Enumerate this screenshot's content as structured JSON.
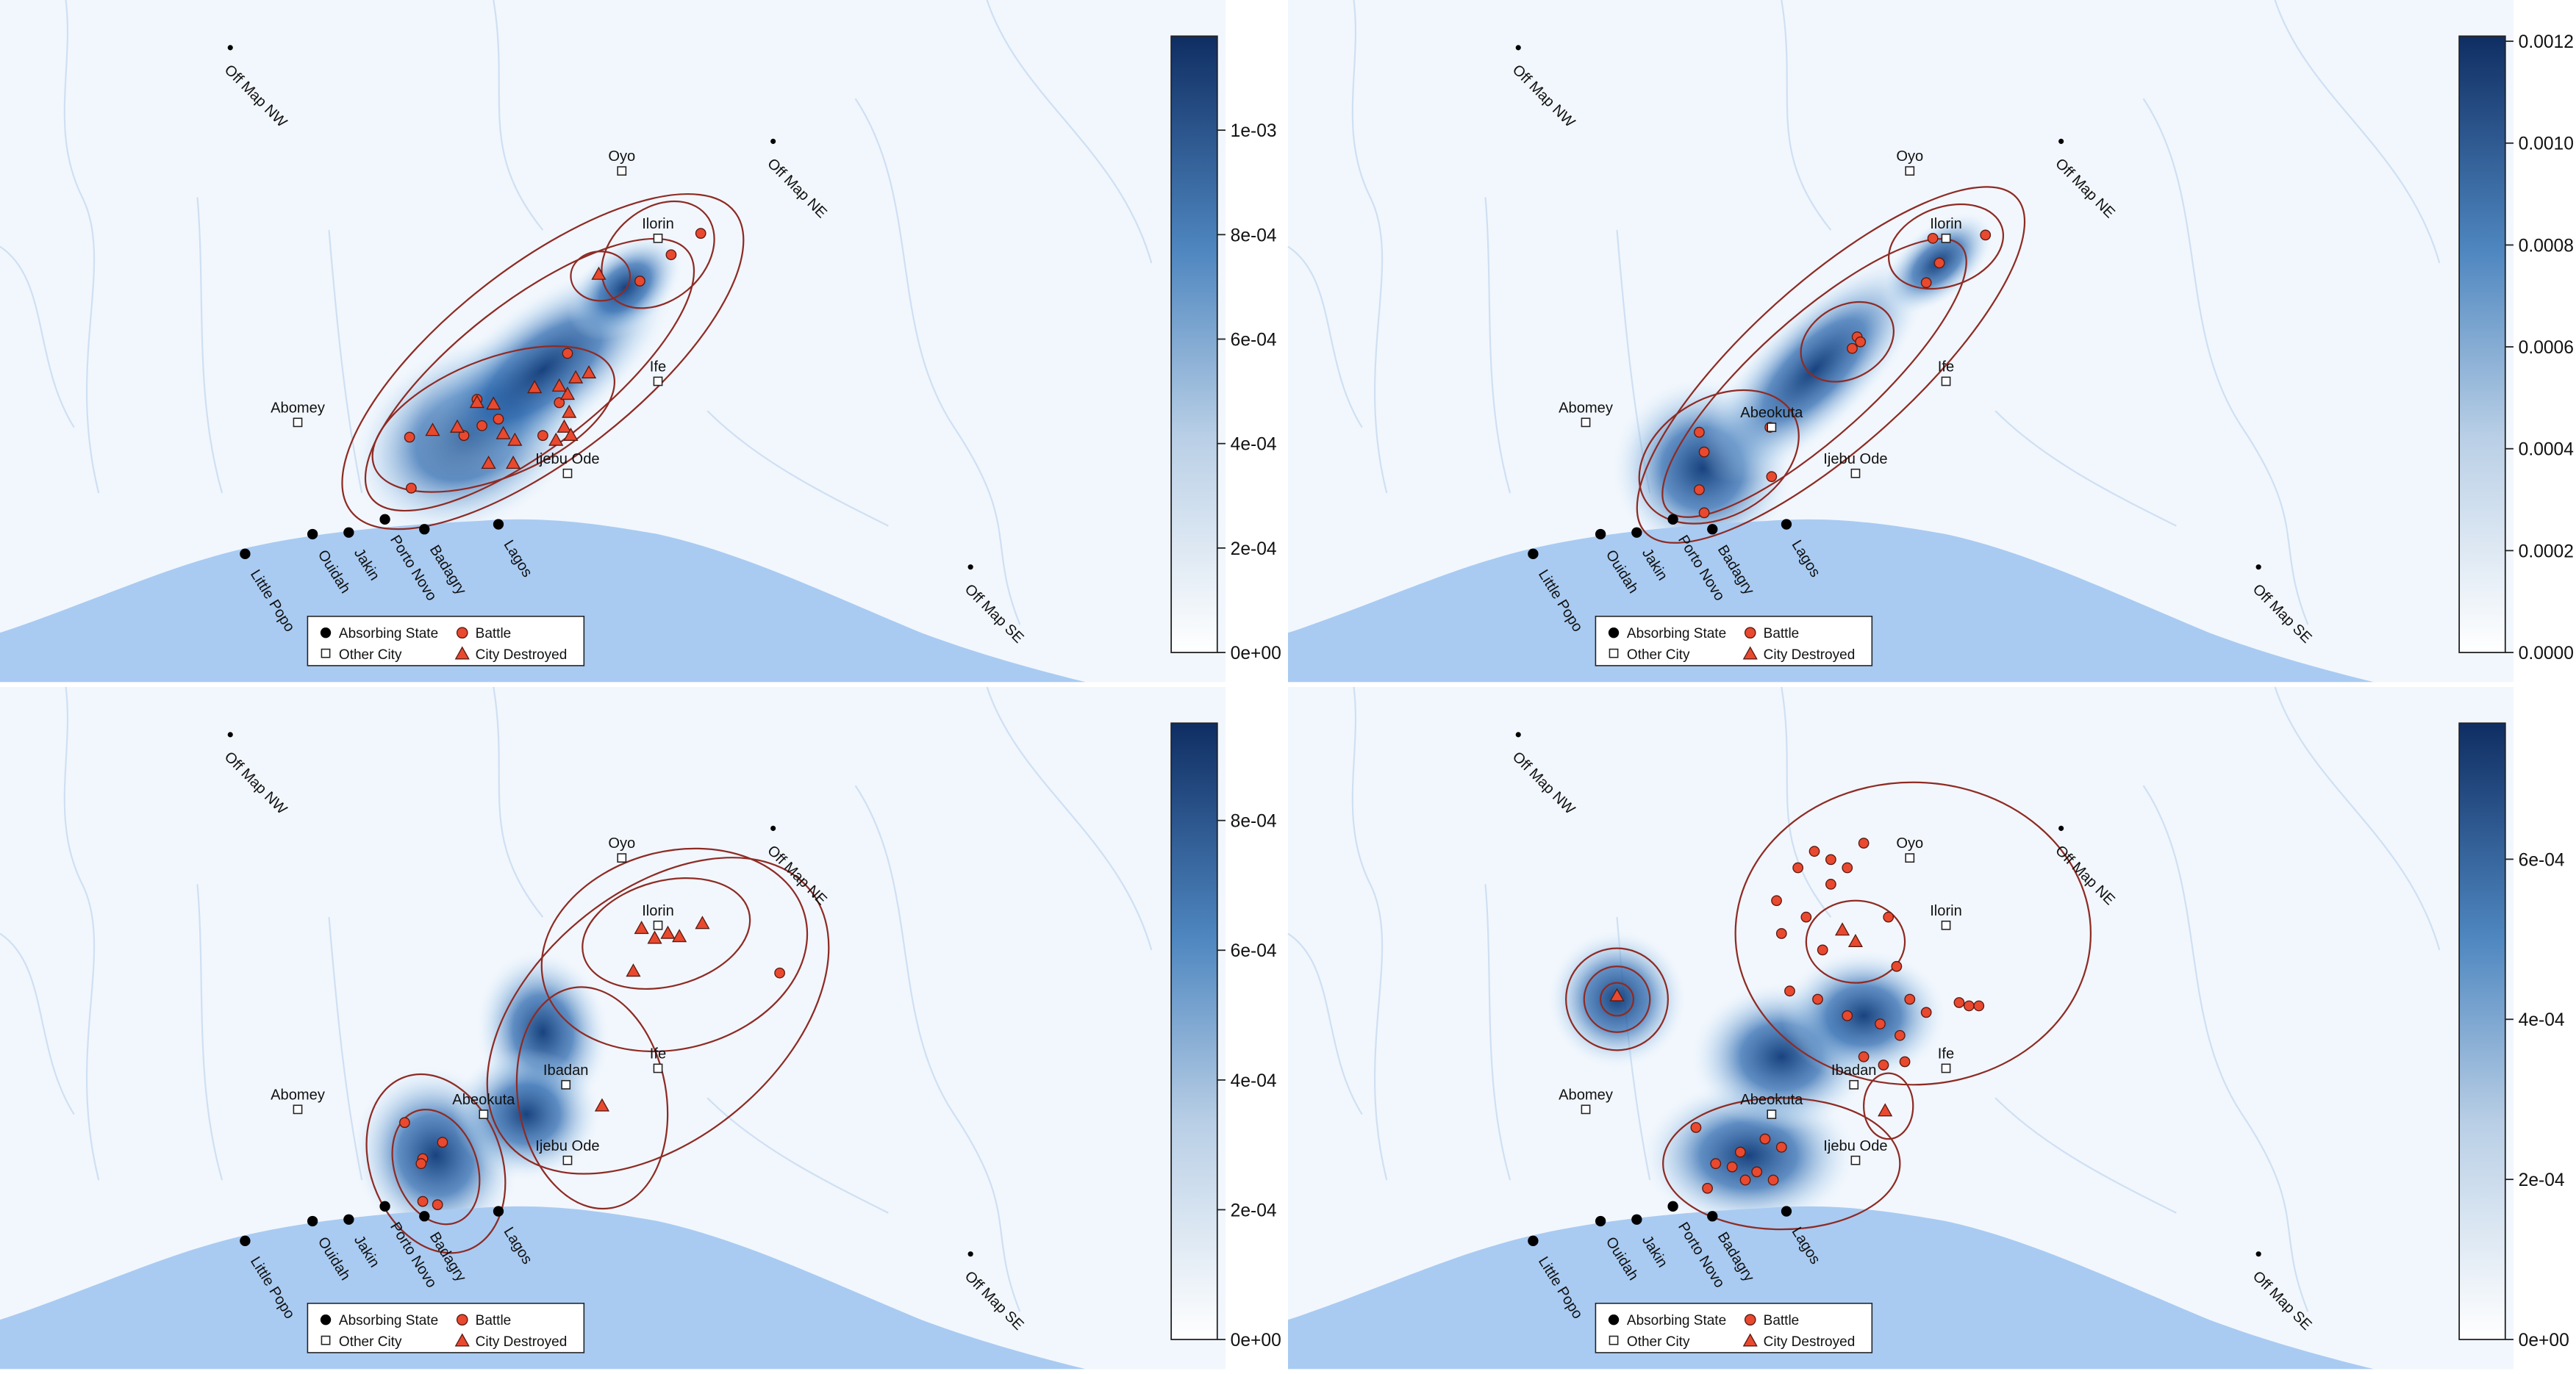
{
  "panels": [
    {
      "colorbar": {
        "lim": [
          0,
          0.00118
        ],
        "ticks": [
          {
            "value": 0,
            "label": "0e+00"
          },
          {
            "value": 0.0002,
            "label": "2e-04"
          },
          {
            "value": 0.0004,
            "label": "4e-04"
          },
          {
            "value": 0.0006,
            "label": "6e-04"
          },
          {
            "value": 0.0008,
            "label": "8e-04"
          },
          {
            "value": 0.001,
            "label": "1e-03"
          }
        ]
      }
    },
    {
      "colorbar": {
        "lim": [
          0,
          0.00121
        ],
        "ticks": [
          {
            "value": 0,
            "label": "0.0000"
          },
          {
            "value": 0.0002,
            "label": "0.0002"
          },
          {
            "value": 0.0004,
            "label": "0.0004"
          },
          {
            "value": 0.0006,
            "label": "0.0006"
          },
          {
            "value": 0.0008,
            "label": "0.0008"
          },
          {
            "value": 0.001,
            "label": "0.0010"
          },
          {
            "value": 0.0012,
            "label": "0.0012"
          }
        ]
      }
    },
    {
      "colorbar": {
        "lim": [
          0,
          0.00095
        ],
        "ticks": [
          {
            "value": 0,
            "label": "0e+00"
          },
          {
            "value": 0.0002,
            "label": "2e-04"
          },
          {
            "value": 0.0004,
            "label": "4e-04"
          },
          {
            "value": 0.0006,
            "label": "6e-04"
          },
          {
            "value": 0.0008,
            "label": "8e-04"
          }
        ]
      }
    },
    {
      "colorbar": {
        "lim": [
          0,
          0.00077
        ],
        "ticks": [
          {
            "value": 0,
            "label": "0e+00"
          },
          {
            "value": 0.0002,
            "label": "2e-04"
          },
          {
            "value": 0.0004,
            "label": "4e-04"
          },
          {
            "value": 0.0006,
            "label": "6e-04"
          }
        ]
      }
    }
  ],
  "places": [
    "Off Map NW",
    "Off Map NE",
    "Off Map SE",
    "Oyo",
    "Ilorin",
    "Ife",
    "Abomey",
    "Ijebu Ode",
    "Little Popo",
    "Ouidah",
    "Jakin",
    "Porto Novo",
    "Badagry",
    "Lagos",
    "Abeokuta",
    "Ibadan"
  ],
  "legend": [
    "Absorbing State",
    "Other City",
    "Battle",
    "City Destroyed"
  ]
}
